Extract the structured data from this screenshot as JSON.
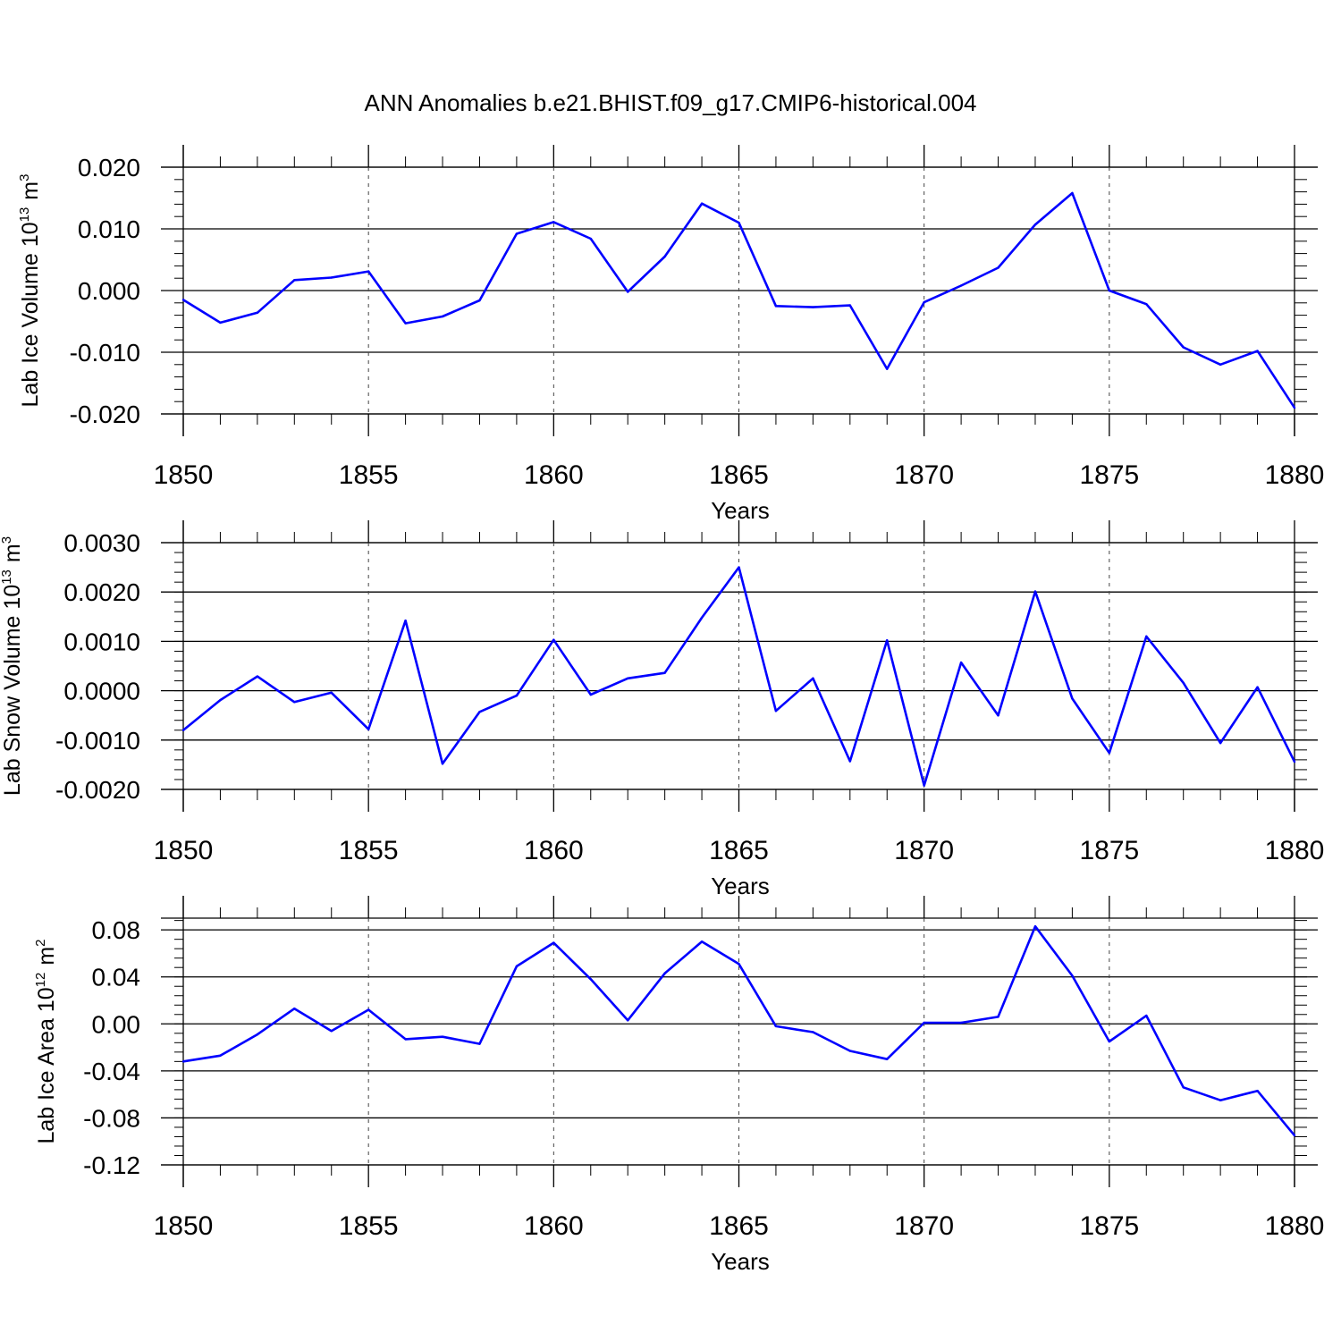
{
  "title": "ANN Anomalies b.e21.BHIST.f09_g17.CMIP6-historical.004",
  "line_color": "#0000ff",
  "chart_data": [
    {
      "type": "line",
      "ylabel_main": "Lab Ice Volume 10",
      "ylabel_exp": "13",
      "ylabel_unit": "m",
      "ylabel_unit_exp": "3",
      "xlabel": "Years",
      "xlim": [
        1850,
        1880
      ],
      "ylim": [
        -0.02,
        0.02
      ],
      "x_ticks": [
        "1850",
        "1855",
        "1860",
        "1865",
        "1870",
        "1875",
        "1880"
      ],
      "y_ticks": [
        "-0.020",
        "-0.010",
        "0.000",
        "0.010",
        "0.020"
      ],
      "y_tick_values": [
        -0.02,
        -0.01,
        0.0,
        0.01,
        0.02
      ],
      "x": [
        1850,
        1851,
        1852,
        1853,
        1854,
        1855,
        1856,
        1857,
        1858,
        1859,
        1860,
        1861,
        1862,
        1863,
        1864,
        1865,
        1866,
        1867,
        1868,
        1869,
        1870,
        1871,
        1872,
        1873,
        1874,
        1875,
        1876,
        1877,
        1878,
        1879,
        1880
      ],
      "values": [
        -0.0015,
        -0.0052,
        -0.0036,
        0.0017,
        0.0021,
        0.0031,
        -0.0053,
        -0.0042,
        -0.0016,
        0.0092,
        0.0111,
        0.0084,
        -0.0002,
        0.0055,
        0.0141,
        0.011,
        -0.0025,
        -0.0027,
        -0.0024,
        -0.0127,
        -0.0019,
        0.0008,
        0.0037,
        0.0107,
        0.0158,
        0.0,
        -0.0022,
        -0.0092,
        -0.012,
        -0.0098,
        -0.019
      ]
    },
    {
      "type": "line",
      "ylabel_main": "Lab Snow Volume 10",
      "ylabel_exp": "13",
      "ylabel_unit": "m",
      "ylabel_unit_exp": "3",
      "xlabel": "Years",
      "xlim": [
        1850,
        1880
      ],
      "ylim": [
        -0.002,
        0.003
      ],
      "x_ticks": [
        "1850",
        "1855",
        "1860",
        "1865",
        "1870",
        "1875",
        "1880"
      ],
      "y_ticks": [
        "-0.0020",
        "-0.0010",
        "0.0000",
        "0.0010",
        "0.0020",
        "0.0030"
      ],
      "y_tick_values": [
        -0.002,
        -0.001,
        0.0,
        0.001,
        0.002,
        0.003
      ],
      "x": [
        1850,
        1851,
        1852,
        1853,
        1854,
        1855,
        1856,
        1857,
        1858,
        1859,
        1860,
        1861,
        1862,
        1863,
        1864,
        1865,
        1866,
        1867,
        1868,
        1869,
        1870,
        1871,
        1872,
        1873,
        1874,
        1875,
        1876,
        1877,
        1878,
        1879,
        1880
      ],
      "values": [
        -0.0008,
        -0.00019,
        0.00029,
        -0.00023,
        -4e-05,
        -0.00078,
        0.00142,
        -0.00148,
        -0.00043,
        -0.0001,
        0.00103,
        -8e-05,
        0.00025,
        0.00036,
        0.00148,
        0.0025,
        -0.00041,
        0.00025,
        -0.00143,
        0.00102,
        -0.00192,
        0.00057,
        -0.0005,
        0.00201,
        -0.00016,
        -0.00126,
        0.0011,
        0.00016,
        -0.00106,
        7e-05,
        -0.00144
      ]
    },
    {
      "type": "line",
      "ylabel_main": "Lab Ice Area 10",
      "ylabel_exp": "12",
      "ylabel_unit": "m",
      "ylabel_unit_exp": "2",
      "xlabel": "Years",
      "xlim": [
        1850,
        1880
      ],
      "ylim": [
        -0.12,
        0.09
      ],
      "x_ticks": [
        "1850",
        "1855",
        "1860",
        "1865",
        "1870",
        "1875",
        "1880"
      ],
      "y_ticks": [
        "-0.12",
        "-0.08",
        "-0.04",
        "0.00",
        "0.04",
        "0.08"
      ],
      "y_tick_values": [
        -0.12,
        -0.08,
        -0.04,
        0.0,
        0.04,
        0.08
      ],
      "x": [
        1850,
        1851,
        1852,
        1853,
        1854,
        1855,
        1856,
        1857,
        1858,
        1859,
        1860,
        1861,
        1862,
        1863,
        1864,
        1865,
        1866,
        1867,
        1868,
        1869,
        1870,
        1871,
        1872,
        1873,
        1874,
        1875,
        1876,
        1877,
        1878,
        1879,
        1880
      ],
      "values": [
        -0.032,
        -0.027,
        -0.009,
        0.013,
        -0.006,
        0.012,
        -0.013,
        -0.011,
        -0.017,
        0.049,
        0.069,
        0.038,
        0.003,
        0.043,
        0.07,
        0.051,
        -0.002,
        -0.007,
        -0.023,
        -0.03,
        0.001,
        0.001,
        0.006,
        0.083,
        0.041,
        -0.015,
        0.007,
        -0.054,
        -0.065,
        -0.057,
        -0.095
      ]
    }
  ]
}
